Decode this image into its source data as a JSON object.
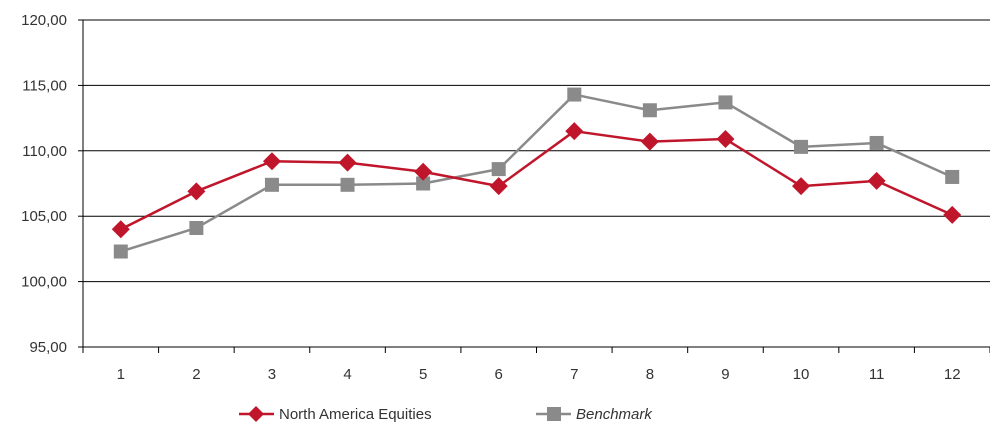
{
  "chart_data": {
    "type": "line",
    "categories": [
      "1",
      "2",
      "3",
      "4",
      "5",
      "6",
      "7",
      "8",
      "9",
      "10",
      "11",
      "12"
    ],
    "series": [
      {
        "name": "North America Equities",
        "values": [
          104.0,
          106.9,
          109.2,
          109.1,
          108.4,
          107.3,
          111.5,
          110.7,
          110.9,
          107.3,
          107.7,
          105.1
        ],
        "color": "#c0162c",
        "marker": "diamond"
      },
      {
        "name": "Benchmark",
        "values": [
          102.3,
          104.1,
          107.4,
          107.4,
          107.5,
          108.6,
          114.3,
          113.1,
          113.7,
          110.3,
          110.6,
          108.0
        ],
        "color": "#8a8a8a",
        "marker": "square"
      }
    ],
    "ylim": [
      95,
      120
    ],
    "y_ticks": [
      "95,00",
      "100,00",
      "105,00",
      "110,00",
      "115,00",
      "120,00"
    ],
    "y_tick_values": [
      95,
      100,
      105,
      110,
      115,
      120
    ],
    "grid": true,
    "legend_position": "bottom-center"
  }
}
